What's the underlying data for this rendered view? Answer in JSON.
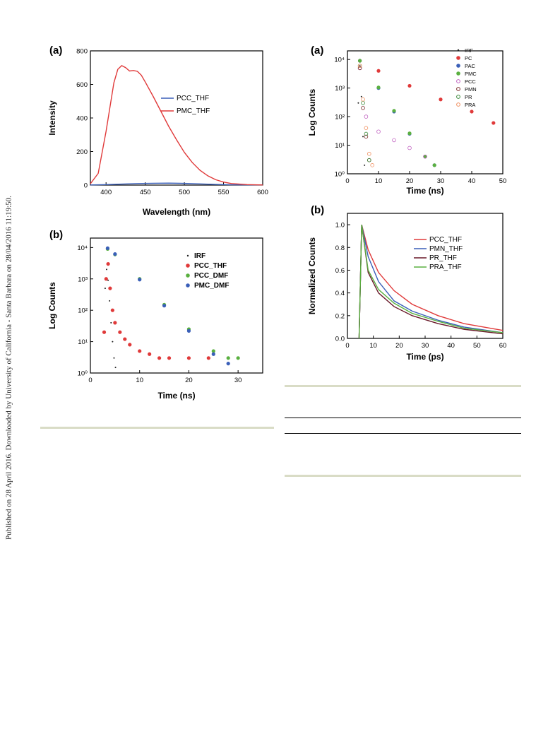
{
  "page": {
    "sidebar_text": "Published on 28 April 2016. Downloaded by University of California - Santa Barbara on 28/04/2016 11:19:50."
  },
  "figures": [
    {
      "panel_label": "(a)",
      "type": "line",
      "xlabel": "Wavelength (nm)",
      "ylabel": "Intensity",
      "xlim": [
        380,
        600
      ],
      "ylim": [
        0,
        800
      ],
      "xticks": [
        400,
        450,
        500,
        550,
        600
      ],
      "yticks": [
        0,
        200,
        400,
        600,
        800
      ],
      "legend_position": "right-middle",
      "series": [
        {
          "name": "PCC_THF",
          "color": "#3a5fb8",
          "x": [
            380,
            400,
            420,
            440,
            460,
            480,
            500,
            520,
            540,
            560,
            600
          ],
          "y": [
            1,
            3,
            6,
            9,
            11,
            12,
            10,
            7,
            4,
            2,
            1
          ]
        },
        {
          "name": "PMC_THF",
          "color": "#e03a3a",
          "x": [
            380,
            390,
            400,
            410,
            415,
            420,
            425,
            430,
            435,
            440,
            445,
            450,
            460,
            470,
            480,
            490,
            500,
            510,
            520,
            530,
            540,
            550,
            560,
            580,
            600
          ],
          "y": [
            8,
            70,
            320,
            610,
            690,
            712,
            700,
            680,
            683,
            678,
            655,
            615,
            530,
            440,
            350,
            270,
            195,
            135,
            88,
            55,
            32,
            18,
            9,
            3,
            1
          ]
        }
      ]
    },
    {
      "panel_label": "(b)",
      "type": "scatter",
      "xlabel": "Time (ns)",
      "ylabel": "Log Counts",
      "xlim": [
        0,
        35
      ],
      "ylim": [
        1,
        20000
      ],
      "yscale": "log",
      "xticks": [
        0,
        10,
        20,
        30
      ],
      "yticks": [
        1,
        10,
        100,
        1000,
        10000
      ],
      "ytick_labels": [
        "10⁰",
        "10¹",
        "10²",
        "10³",
        "10⁴"
      ],
      "legend_position": "top-right",
      "series": [
        {
          "name": "IRF",
          "color": "#222222",
          "style": "dot",
          "x": [
            3,
            3.3,
            3.6,
            3.9,
            4.2,
            4.5,
            4.8,
            5.1
          ],
          "y": [
            500,
            2000,
            900,
            200,
            40,
            10,
            3,
            1.5
          ]
        },
        {
          "name": "PCC_THF",
          "color": "#e03a3a",
          "style": "circle",
          "x": [
            2.8,
            3.2,
            3.6,
            4.0,
            4.5,
            5,
            6,
            7,
            8,
            10,
            12,
            14,
            16,
            20,
            24
          ],
          "y": [
            20,
            1000,
            3000,
            500,
            100,
            40,
            20,
            12,
            8,
            5,
            4,
            3,
            3,
            3,
            3
          ]
        },
        {
          "name": "PCC_DMF",
          "color": "#5ab040",
          "style": "circle",
          "x": [
            3.5,
            5,
            10,
            15,
            20,
            25,
            28,
            30
          ],
          "y": [
            9000,
            6000,
            1000,
            150,
            25,
            5,
            3,
            3
          ]
        },
        {
          "name": "PMC_DMF",
          "color": "#3a5fb8",
          "style": "circle",
          "x": [
            3.5,
            5,
            10,
            15,
            20,
            25,
            28
          ],
          "y": [
            9500,
            6200,
            950,
            140,
            22,
            4,
            2
          ]
        }
      ]
    },
    {
      "panel_label": "(a)",
      "type": "scatter",
      "xlabel": "Time (ns)",
      "ylabel": "Log Counts",
      "xlim": [
        0,
        50
      ],
      "ylim": [
        1,
        20000
      ],
      "yscale": "log",
      "xticks": [
        0,
        10,
        20,
        30,
        40,
        50
      ],
      "yticks": [
        1,
        10,
        100,
        1000,
        10000
      ],
      "ytick_labels": [
        "10⁰",
        "10¹",
        "10²",
        "10³",
        "10⁴"
      ],
      "legend_position": "top-right",
      "series": [
        {
          "name": "IRF",
          "color": "#222222",
          "style": "dot",
          "x": [
            3.5,
            4,
            4.5,
            5,
            5.5
          ],
          "y": [
            300,
            6000,
            500,
            20,
            2
          ]
        },
        {
          "name": "PC",
          "color": "#e03a3a",
          "style": "circle",
          "x": [
            4,
            10,
            20,
            30,
            40,
            47
          ],
          "y": [
            9000,
            4000,
            1200,
            400,
            150,
            60
          ]
        },
        {
          "name": "PAC",
          "color": "#3a5fb8",
          "style": "circle",
          "x": [
            4,
            10,
            15,
            20,
            25,
            28
          ],
          "y": [
            9000,
            1000,
            150,
            25,
            4,
            2
          ]
        },
        {
          "name": "PMC",
          "color": "#5ab040",
          "style": "circle",
          "x": [
            4,
            10,
            15,
            20,
            25,
            28
          ],
          "y": [
            9000,
            1050,
            160,
            26,
            4,
            2
          ]
        },
        {
          "name": "PCC",
          "color": "#c060c0",
          "style": "open",
          "x": [
            4,
            6,
            10,
            15,
            20,
            25
          ],
          "y": [
            5000,
            100,
            30,
            15,
            8,
            4
          ]
        },
        {
          "name": "PMN",
          "color": "#7a2a2a",
          "style": "open",
          "x": [
            4,
            5,
            6,
            7
          ],
          "y": [
            5000,
            200,
            20,
            3
          ]
        },
        {
          "name": "PR",
          "color": "#3a8a3a",
          "style": "open",
          "x": [
            4,
            5,
            6,
            7
          ],
          "y": [
            6000,
            300,
            25,
            3
          ]
        },
        {
          "name": "PRA",
          "color": "#f09060",
          "style": "open",
          "x": [
            4,
            5,
            6,
            7,
            8
          ],
          "y": [
            6000,
            400,
            40,
            5,
            2
          ]
        }
      ]
    },
    {
      "panel_label": "(b)",
      "type": "line",
      "xlabel": "Time (ps)",
      "ylabel": "Normalized Counts",
      "xlim": [
        0,
        60
      ],
      "ylim": [
        0,
        1.1
      ],
      "xticks": [
        0,
        10,
        20,
        30,
        40,
        50,
        60
      ],
      "yticks": [
        0.0,
        0.2,
        0.4,
        0.6,
        0.8,
        1.0
      ],
      "ytick_labels": [
        "0.0",
        "0.2",
        "0.4",
        "0.6",
        "0.8",
        "1.0"
      ],
      "legend_position": "top-right",
      "series": [
        {
          "name": "PCC_THF",
          "color": "#e03a3a",
          "x": [
            4.5,
            5.5,
            8,
            12,
            18,
            25,
            35,
            45,
            60
          ],
          "y": [
            0,
            1.0,
            0.78,
            0.58,
            0.42,
            0.3,
            0.2,
            0.13,
            0.07
          ]
        },
        {
          "name": "PMN_THF",
          "color": "#3a5fb8",
          "x": [
            4.5,
            5.5,
            8,
            12,
            18,
            25,
            35,
            45,
            60
          ],
          "y": [
            0,
            1.0,
            0.72,
            0.5,
            0.33,
            0.24,
            0.16,
            0.1,
            0.05
          ]
        },
        {
          "name": "PR_THF",
          "color": "#6a1a2a",
          "x": [
            4.5,
            5.5,
            8,
            12,
            18,
            25,
            35,
            45,
            60
          ],
          "y": [
            0,
            1.0,
            0.58,
            0.4,
            0.28,
            0.2,
            0.13,
            0.08,
            0.04
          ]
        },
        {
          "name": "PRA_THF",
          "color": "#5ab040",
          "x": [
            4.5,
            5.5,
            8,
            12,
            18,
            25,
            35,
            45,
            60
          ],
          "y": [
            0,
            1.0,
            0.6,
            0.43,
            0.31,
            0.22,
            0.15,
            0.09,
            0.05
          ]
        }
      ]
    }
  ]
}
